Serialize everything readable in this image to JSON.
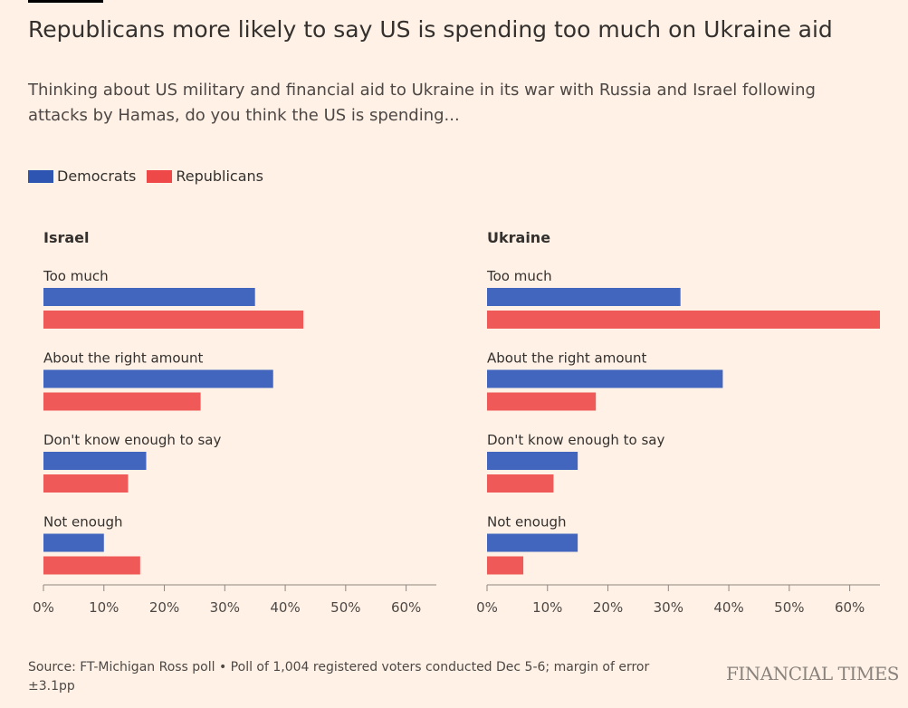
{
  "header": {
    "title": "Republicans more likely to say US is spending too much on Ukraine aid",
    "subtitle": "Thinking about US military and financial aid to Ukraine in its war with Russia and Israel following attacks by Hamas, do you think the US is spending..."
  },
  "footer": {
    "source": "Source: FT-Michigan Ross poll • Poll of 1,004 registered voters conducted Dec 5-6; margin of error ±3.1pp",
    "logo": "FINANCIAL TIMES"
  },
  "chart_data": {
    "type": "bar",
    "orientation": "horizontal",
    "legend": {
      "placement": "top-left",
      "entries": [
        "Democrats",
        "Republicans"
      ]
    },
    "colors": {
      "Democrats": "#4265bd",
      "Republicans": "#ef5a58"
    },
    "xlim": [
      0,
      65
    ],
    "ticks": [
      "0%",
      "10%",
      "20%",
      "30%",
      "40%",
      "50%",
      "60%"
    ],
    "tick_values": [
      0,
      10,
      20,
      30,
      40,
      50,
      60
    ],
    "grid": false,
    "panels": [
      {
        "title": "Israel",
        "categories": [
          "Too much",
          "About the right amount",
          "Don't know enough to say",
          "Not enough"
        ],
        "series": [
          {
            "name": "Democrats",
            "values": [
              35,
              38,
              17,
              10
            ]
          },
          {
            "name": "Republicans",
            "values": [
              43,
              26,
              14,
              16
            ]
          }
        ]
      },
      {
        "title": "Ukraine",
        "categories": [
          "Too much",
          "About the right amount",
          "Don't know enough to say",
          "Not enough"
        ],
        "series": [
          {
            "name": "Democrats",
            "values": [
              32,
              39,
              15,
              15
            ]
          },
          {
            "name": "Republicans",
            "values": [
              65,
              18,
              11,
              6
            ]
          }
        ]
      }
    ]
  }
}
